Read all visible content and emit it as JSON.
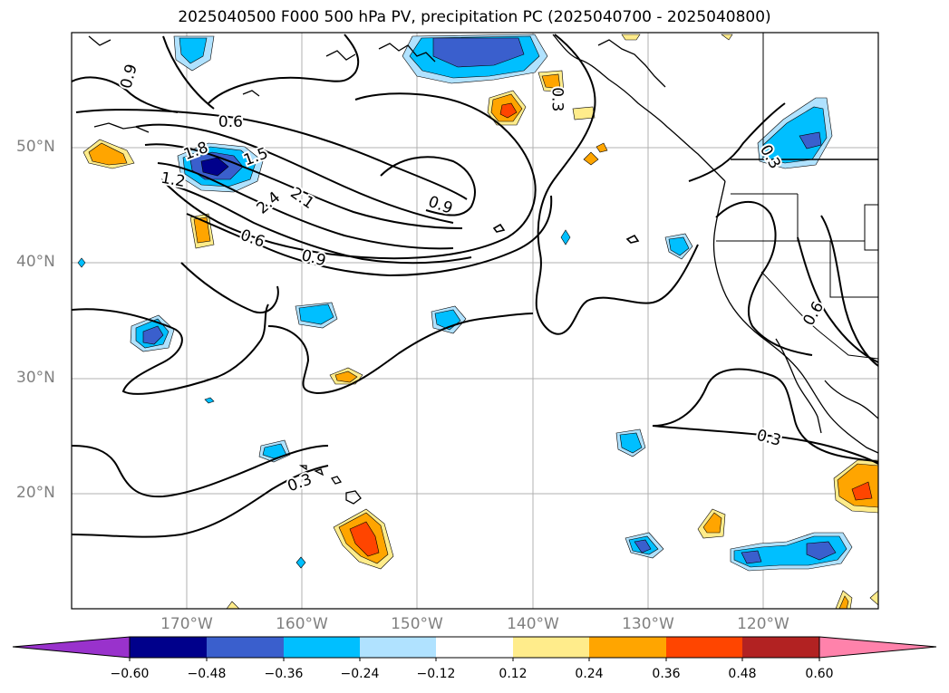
{
  "title": "2025040500 F000 500 hPa PV, precipitation PC (2025040700 - 2025040800)",
  "map": {
    "extent": {
      "lon_min": -180,
      "lon_max": -110,
      "lat_min": 10,
      "lat_max": 60
    },
    "lon_ticks": [
      {
        "lon": -170,
        "label": "170°W"
      },
      {
        "lon": -160,
        "label": "160°W"
      },
      {
        "lon": -150,
        "label": "150°W"
      },
      {
        "lon": -140,
        "label": "140°W"
      },
      {
        "lon": -130,
        "label": "130°W"
      },
      {
        "lon": -120,
        "label": "120°W"
      }
    ],
    "lat_ticks": [
      {
        "lat": 50,
        "label": "50°N"
      },
      {
        "lat": 40,
        "label": "40°N"
      },
      {
        "lat": 30,
        "label": "30°N"
      },
      {
        "lat": 20,
        "label": "20°N"
      }
    ],
    "grid": true,
    "contour_labels": [
      {
        "text": "0.9",
        "lon": -175.0,
        "lat": 56.2,
        "rot": -75
      },
      {
        "text": "0.6",
        "lon": -166.2,
        "lat": 52.2,
        "rot": 0
      },
      {
        "text": "1.8",
        "lon": -169.2,
        "lat": 49.7,
        "rot": -20
      },
      {
        "text": "1.5",
        "lon": -164.0,
        "lat": 49.2,
        "rot": -20
      },
      {
        "text": "1.2",
        "lon": -171.2,
        "lat": 47.2,
        "rot": 10
      },
      {
        "text": "2.4",
        "lon": -162.9,
        "lat": 45.2,
        "rot": -40
      },
      {
        "text": "2.1",
        "lon": -160.0,
        "lat": 45.6,
        "rot": 35
      },
      {
        "text": "0.9",
        "lon": -148.0,
        "lat": 45.0,
        "rot": 20
      },
      {
        "text": "0.6",
        "lon": -164.3,
        "lat": 42.1,
        "rot": 20
      },
      {
        "text": "0.9",
        "lon": -159.0,
        "lat": 40.4,
        "rot": 15
      },
      {
        "text": "0.3",
        "lon": -137.9,
        "lat": 54.2,
        "rot": 90
      },
      {
        "text": "0.3",
        "lon": -119.4,
        "lat": 49.2,
        "rot": 60
      },
      {
        "text": "0.6",
        "lon": -115.6,
        "lat": 35.6,
        "rot": -60
      },
      {
        "text": "0.3",
        "lon": -119.5,
        "lat": 24.8,
        "rot": 15
      },
      {
        "text": "0.3",
        "lon": -160.2,
        "lat": 20.9,
        "rot": -20
      }
    ],
    "colors": {
      "neg": [
        "#9932cc",
        "#00008b",
        "#3a5fcd",
        "#00bfff",
        "#b0e2ff"
      ],
      "pos": [
        "#ffec8b",
        "#ffa500",
        "#ff4500",
        "#b22222",
        "#ff82ab"
      ],
      "contour": "#000000"
    }
  },
  "colorbar": {
    "levels": [
      "−0.60",
      "−0.48",
      "−0.36",
      "−0.24",
      "−0.12",
      "0.12",
      "0.24",
      "0.36",
      "0.48",
      "0.60"
    ],
    "colors": [
      "#9932cc",
      "#00008b",
      "#3a5fcd",
      "#00bfff",
      "#b0e2ff",
      "#ffffff",
      "#ffec8b",
      "#ffa500",
      "#ff4500",
      "#b22222",
      "#ff82ab"
    ]
  }
}
